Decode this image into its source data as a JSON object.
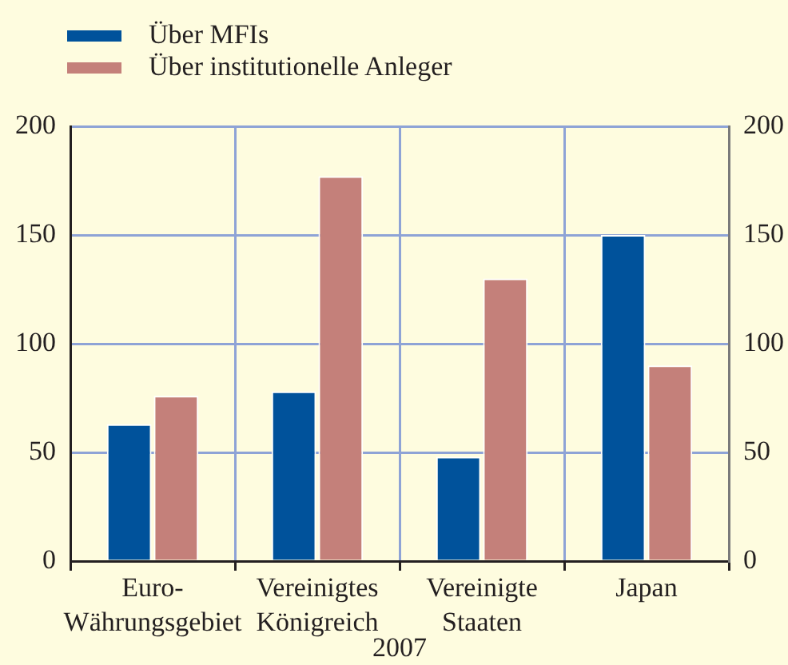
{
  "chart_data": {
    "type": "bar",
    "xlabel": "2007",
    "categories": [
      "Euro-Währungsgebiet",
      "Vereinigtes Königreich",
      "Vereinigte Staaten",
      "Japan"
    ],
    "series": [
      {
        "name": "Über MFIs",
        "color": "#00529b",
        "values": [
          63,
          78,
          48,
          150
        ]
      },
      {
        "name": "Über institutionelle Anleger",
        "color": "#c4807a",
        "values": [
          76,
          177,
          130,
          90
        ]
      }
    ],
    "ylim": [
      0,
      200
    ],
    "yticks": [
      0,
      50,
      100,
      150,
      200
    ],
    "y2lim": [
      0,
      200
    ],
    "y2ticks": [
      0,
      50,
      100,
      150,
      200
    ],
    "grid": true,
    "legend": "top left"
  }
}
